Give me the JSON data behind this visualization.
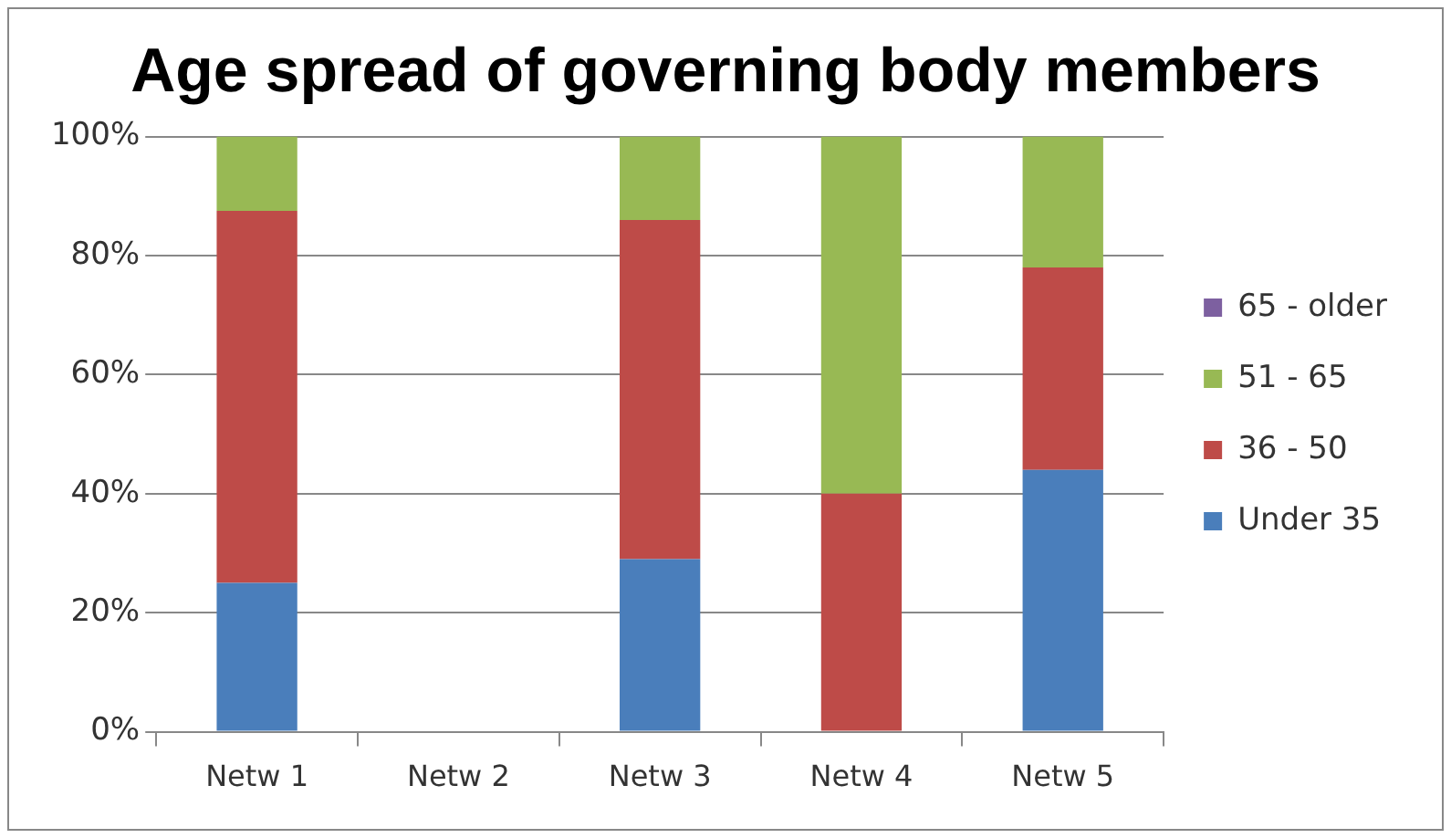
{
  "chart_data": {
    "type": "bar",
    "title": "Age spread of governing body members",
    "stacked": true,
    "categories": [
      "Netw 1",
      "Netw 2",
      "Netw 3",
      "Netw 4",
      "Netw 5"
    ],
    "series": [
      {
        "name": "Under 35",
        "color": "#4a7ebb",
        "values": [
          25,
          null,
          29,
          0,
          44
        ]
      },
      {
        "name": "36 - 50",
        "color": "#be4b48",
        "values": [
          62.5,
          null,
          57,
          40,
          34
        ]
      },
      {
        "name": "51 - 65",
        "color": "#98b954",
        "values": [
          12.5,
          null,
          14,
          60,
          22
        ]
      },
      {
        "name": "65 - older",
        "color": "#7d60a0",
        "values": [
          0,
          null,
          0,
          0,
          0
        ]
      }
    ],
    "ylim": [
      0,
      100
    ],
    "yticks": [
      {
        "value": 0,
        "label": "0%"
      },
      {
        "value": 20,
        "label": "20%"
      },
      {
        "value": 40,
        "label": "40%"
      },
      {
        "value": 60,
        "label": "60%"
      },
      {
        "value": 80,
        "label": "80%"
      },
      {
        "value": 100,
        "label": "100%"
      }
    ],
    "grid": "y",
    "legend": "right"
  }
}
